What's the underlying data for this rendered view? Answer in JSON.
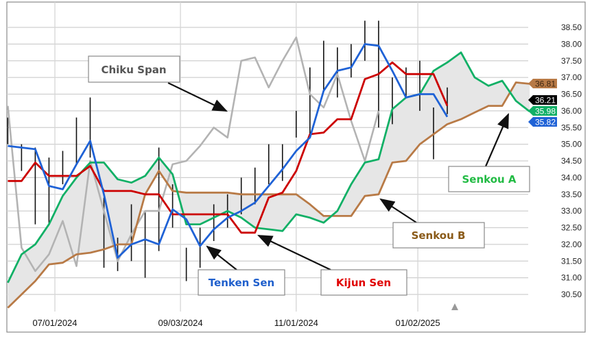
{
  "chart_data": {
    "type": "line",
    "title": "",
    "xlabel": "",
    "ylabel": "",
    "ylim": [
      30.0,
      39.0
    ],
    "grid": true,
    "y_ticks": [
      "30.50",
      "31.00",
      "31.50",
      "32.00",
      "32.50",
      "33.00",
      "33.50",
      "34.00",
      "34.50",
      "35.00",
      "35.50",
      "36.00",
      "36.50",
      "37.00",
      "37.50",
      "38.00",
      "38.50"
    ],
    "x_ticks": [
      {
        "date": "2024-07-01",
        "label": "07/01/2024"
      },
      {
        "date": "2024-09-03",
        "label": "09/03/2024"
      },
      {
        "date": "2024-11-01",
        "label": "11/01/2024"
      },
      {
        "date": "2025-01-02",
        "label": "01/02/2025"
      }
    ],
    "x": [
      "2024-06-07",
      "2024-06-14",
      "2024-06-21",
      "2024-06-28",
      "2024-07-05",
      "2024-07-12",
      "2024-07-19",
      "2024-07-26",
      "2024-08-02",
      "2024-08-09",
      "2024-08-16",
      "2024-08-23",
      "2024-08-30",
      "2024-09-06",
      "2024-09-13",
      "2024-09-20",
      "2024-09-27",
      "2024-10-04",
      "2024-10-11",
      "2024-10-18",
      "2024-10-25",
      "2024-11-01",
      "2024-11-08",
      "2024-11-15",
      "2024-11-22",
      "2024-11-29",
      "2024-12-06",
      "2024-12-13",
      "2024-12-20",
      "2024-12-27",
      "2025-01-03",
      "2025-01-10",
      "2025-01-17",
      "2025-01-24",
      "2025-01-31",
      "2025-02-07",
      "2025-02-14",
      "2025-02-21",
      "2025-02-28"
    ],
    "price_bars": [
      [
        35.8,
        35.0
      ],
      [
        35.0,
        34.2
      ],
      [
        34.9,
        32.6
      ],
      [
        34.6,
        32.6
      ],
      [
        34.8,
        33.8
      ],
      [
        35.8,
        34.4
      ],
      [
        36.4,
        34.6
      ],
      [
        33.4,
        31.3
      ],
      [
        32.2,
        31.2
      ],
      [
        33.2,
        31.5
      ],
      [
        33.0,
        31.0
      ],
      [
        34.9,
        31.8
      ],
      [
        33.8,
        32.5
      ],
      [
        31.9,
        30.9
      ],
      [
        32.5,
        31.3
      ],
      [
        33.2,
        32.1
      ],
      [
        33.5,
        32.5
      ],
      [
        34.0,
        32.9
      ],
      [
        34.3,
        33.2
      ],
      [
        35.0,
        33.8
      ],
      [
        35.0,
        33.9
      ],
      [
        36.0,
        35.2
      ],
      [
        37.3,
        35.3
      ],
      [
        38.1,
        36.6
      ],
      [
        37.9,
        36.4
      ],
      [
        38.0,
        37.0
      ],
      [
        38.7,
        37.5
      ],
      [
        38.7,
        35.5
      ],
      [
        37.0,
        35.6
      ],
      [
        37.3,
        36.4
      ],
      [
        37.5,
        36.0
      ],
      [
        36.1,
        34.55
      ],
      [
        36.7,
        35.9
      ]
    ],
    "series": [
      {
        "key": "tenkan",
        "color": "#1f62d6",
        "values": [
          34.95,
          34.9,
          34.85,
          33.75,
          33.65,
          34.4,
          35.1,
          33.5,
          31.6,
          32.0,
          32.15,
          32.0,
          33.05,
          32.75,
          31.95,
          32.45,
          32.8,
          33.0,
          33.25,
          33.75,
          34.25,
          34.8,
          35.2,
          36.6,
          37.2,
          37.3,
          38.0,
          37.95,
          37.2,
          36.4,
          36.5,
          36.5,
          35.82,
          null,
          null,
          null,
          null,
          null,
          null
        ]
      },
      {
        "key": "kijun",
        "color": "#cc0000",
        "values": [
          33.9,
          33.9,
          34.45,
          34.05,
          34.05,
          34.05,
          34.35,
          33.6,
          33.6,
          33.6,
          33.5,
          33.5,
          32.9,
          32.9,
          32.9,
          32.9,
          32.9,
          32.35,
          32.35,
          33.4,
          33.55,
          34.2,
          35.3,
          35.35,
          35.75,
          35.75,
          36.95,
          37.1,
          37.45,
          37.1,
          37.1,
          37.1,
          36.15,
          null,
          null,
          null,
          null,
          null,
          null
        ]
      },
      {
        "key": "senkou_a",
        "color": "#11b066",
        "values": [
          30.85,
          31.7,
          32.0,
          32.6,
          33.45,
          34.0,
          34.45,
          34.45,
          33.95,
          33.85,
          34.05,
          34.6,
          34.1,
          32.6,
          32.6,
          32.8,
          33.0,
          32.8,
          32.5,
          32.45,
          32.4,
          32.9,
          32.8,
          32.65,
          33.0,
          33.8,
          34.45,
          34.55,
          36.05,
          36.4,
          36.5,
          37.2,
          37.45,
          37.75,
          37.0,
          36.75,
          36.9,
          36.3,
          35.98
        ]
      },
      {
        "key": "senkou_b",
        "color": "#b87a46",
        "values": [
          30.1,
          30.5,
          30.9,
          31.4,
          31.45,
          31.7,
          31.75,
          31.85,
          32.0,
          32.0,
          33.5,
          34.2,
          33.6,
          33.55,
          33.55,
          33.55,
          33.55,
          33.5,
          33.5,
          33.5,
          33.5,
          33.5,
          33.2,
          32.85,
          32.85,
          32.85,
          33.45,
          33.5,
          34.45,
          34.5,
          35.0,
          35.3,
          35.6,
          35.75,
          35.95,
          36.15,
          36.15,
          36.85,
          36.81
        ]
      },
      {
        "key": "chikou",
        "color": "#b3b3b3",
        "values": [
          36.15,
          31.9,
          31.2,
          31.7,
          32.7,
          31.35,
          34.5,
          33.0,
          31.5,
          32.3,
          33.0,
          33.0,
          34.4,
          34.5,
          34.95,
          35.5,
          35.2,
          37.5,
          37.6,
          36.7,
          37.5,
          38.2,
          36.5,
          36.1,
          37.1,
          35.7,
          34.5,
          36.0,
          null,
          null,
          null,
          null,
          null,
          null,
          null,
          null,
          null,
          null,
          null
        ]
      }
    ],
    "cloud_color": "#e6e6e6",
    "last_values": [
      {
        "key": "senkou_b",
        "label": "36.81",
        "value": 36.81,
        "bg": "#b87a46",
        "fg": "#3a2410"
      },
      {
        "key": "price",
        "label": "36.21",
        "value": 36.21,
        "bg": "#000000",
        "fg": "#ffffff"
      },
      {
        "key": "senkou_a",
        "label": "35.98",
        "value": 35.98,
        "bg": "#11b066",
        "fg": "#ffffff"
      },
      {
        "key": "tenkan",
        "label": "35.82",
        "value": 35.82,
        "bg": "#1f62d6",
        "fg": "#ffffff"
      }
    ],
    "annotations": {
      "chikou": {
        "text": "Chiku Span",
        "color": "#555555"
      },
      "tenkan": {
        "text": "Tenken Sen",
        "color": "#1f5fcc"
      },
      "kijun": {
        "text": "Kijun Sen",
        "color": "#e00000"
      },
      "senkou_b": {
        "text": "Senkou B",
        "color": "#8a5a18"
      },
      "senkou_a": {
        "text": "Senkou A",
        "color": "#22bb44"
      }
    }
  }
}
